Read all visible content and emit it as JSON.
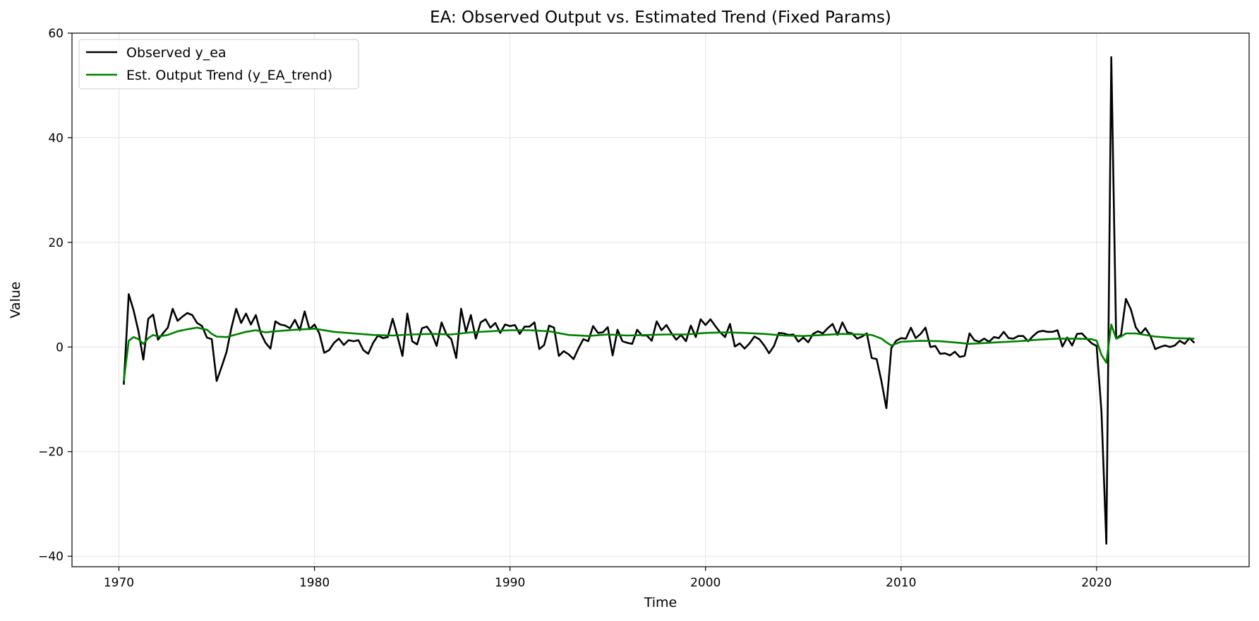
{
  "chart_data": {
    "type": "line",
    "title": "EA: Observed Output vs. Estimated Trend (Fixed Params)",
    "xlabel": "Time",
    "ylabel": "Value",
    "xlim": [
      1967.6,
      2027.8
    ],
    "ylim": [
      -42,
      60
    ],
    "xticks": [
      1970,
      1980,
      1990,
      2000,
      2010,
      2020
    ],
    "yticks": [
      -40,
      -20,
      0,
      20,
      40,
      60
    ],
    "ytick_labels": [
      "−40",
      "−20",
      "0",
      "20",
      "40",
      "60"
    ],
    "grid": true,
    "legend_position": "upper-left",
    "series": [
      {
        "name": "Observed y_ea",
        "color": "#000000",
        "x": [
          1970.25,
          1970.5,
          1970.75,
          1971,
          1971.25,
          1971.5,
          1971.75,
          1972,
          1972.25,
          1972.5,
          1972.75,
          1973,
          1973.25,
          1973.5,
          1973.75,
          1974,
          1974.25,
          1974.5,
          1974.75,
          1975,
          1975.25,
          1975.5,
          1975.75,
          1976,
          1976.25,
          1976.5,
          1976.75,
          1977,
          1977.25,
          1977.5,
          1977.75,
          1978,
          1978.25,
          1978.5,
          1978.75,
          1979,
          1979.25,
          1979.5,
          1979.75,
          1980,
          1980.25,
          1980.5,
          1980.75,
          1981,
          1981.25,
          1981.5,
          1981.75,
          1982,
          1982.25,
          1982.5,
          1982.75,
          1983,
          1983.25,
          1983.5,
          1983.75,
          1984,
          1984.25,
          1984.5,
          1984.75,
          1985,
          1985.25,
          1985.5,
          1985.75,
          1986,
          1986.25,
          1986.5,
          1986.75,
          1987,
          1987.25,
          1987.5,
          1987.75,
          1988,
          1988.25,
          1988.5,
          1988.75,
          1989,
          1989.25,
          1989.5,
          1989.75,
          1990,
          1990.25,
          1990.5,
          1990.75,
          1991,
          1991.25,
          1991.5,
          1991.75,
          1992,
          1992.25,
          1992.5,
          1992.75,
          1993,
          1993.25,
          1993.5,
          1993.75,
          1994,
          1994.25,
          1994.5,
          1994.75,
          1995,
          1995.25,
          1995.5,
          1995.75,
          1996,
          1996.25,
          1996.5,
          1996.75,
          1997,
          1997.25,
          1997.5,
          1997.75,
          1998,
          1998.25,
          1998.5,
          1998.75,
          1999,
          1999.25,
          1999.5,
          1999.75,
          2000,
          2000.25,
          2000.5,
          2000.75,
          2001,
          2001.25,
          2001.5,
          2001.75,
          2002,
          2002.25,
          2002.5,
          2002.75,
          2003,
          2003.25,
          2003.5,
          2003.75,
          2004,
          2004.25,
          2004.5,
          2004.75,
          2005,
          2005.25,
          2005.5,
          2005.75,
          2006,
          2006.25,
          2006.5,
          2006.75,
          2007,
          2007.25,
          2007.5,
          2007.75,
          2008,
          2008.25,
          2008.5,
          2008.75,
          2009,
          2009.25,
          2009.5,
          2009.75,
          2010,
          2010.25,
          2010.5,
          2010.75,
          2011,
          2011.25,
          2011.5,
          2011.75,
          2012,
          2012.25,
          2012.5,
          2012.75,
          2013,
          2013.25,
          2013.5,
          2013.75,
          2014,
          2014.25,
          2014.5,
          2014.75,
          2015,
          2015.25,
          2015.5,
          2015.75,
          2016,
          2016.25,
          2016.5,
          2016.75,
          2017,
          2017.25,
          2017.5,
          2017.75,
          2018,
          2018.25,
          2018.5,
          2018.75,
          2019,
          2019.25,
          2019.5,
          2019.75,
          2020,
          2020.25,
          2020.5,
          2020.75,
          2021,
          2021.25,
          2021.5,
          2021.75,
          2022,
          2022.25,
          2022.5,
          2022.75,
          2023,
          2023.25,
          2023.5,
          2023.75,
          2024,
          2024.25,
          2024.5,
          2024.75,
          2025
        ],
        "y": [
          -7.2,
          10.1,
          7.0,
          3.0,
          -2.4,
          5.4,
          6.2,
          1.4,
          2.6,
          3.7,
          7.3,
          5.0,
          5.8,
          6.5,
          6.1,
          4.6,
          4.0,
          1.8,
          1.5,
          -6.5,
          -3.8,
          -1.0,
          3.6,
          7.3,
          4.6,
          6.4,
          4.3,
          6.1,
          2.7,
          0.8,
          -0.3,
          4.9,
          4.3,
          4.1,
          3.6,
          5.2,
          3.2,
          6.8,
          3.4,
          4.3,
          2.6,
          -1.1,
          -0.6,
          0.8,
          1.6,
          0.4,
          1.3,
          1.1,
          1.3,
          -0.6,
          -1.3,
          0.8,
          2.2,
          1.7,
          1.9,
          5.4,
          2.0,
          -1.7,
          6.4,
          1.1,
          0.5,
          3.6,
          3.9,
          2.6,
          0.2,
          4.7,
          2.4,
          1.5,
          -2.1,
          7.3,
          2.9,
          6.1,
          1.6,
          4.7,
          5.3,
          3.7,
          4.6,
          2.7,
          4.3,
          4.0,
          4.2,
          2.5,
          3.9,
          3.9,
          4.7,
          -0.4,
          0.4,
          4.1,
          3.7,
          -1.7,
          -0.8,
          -1.4,
          -2.3,
          -0.3,
          1.5,
          1.1,
          4.0,
          2.7,
          2.8,
          3.8,
          -1.6,
          3.3,
          1.1,
          0.8,
          0.6,
          3.3,
          2.2,
          2.2,
          1.2,
          4.9,
          3.2,
          4.2,
          2.7,
          1.4,
          2.3,
          1.1,
          4.1,
          1.9,
          5.3,
          4.2,
          5.3,
          4.0,
          2.8,
          1.9,
          4.4,
          0.1,
          0.7,
          -0.3,
          0.7,
          2.0,
          1.5,
          0.3,
          -1.2,
          0.2,
          2.7,
          2.6,
          2.3,
          2.4,
          1.0,
          1.8,
          0.9,
          2.5,
          3.0,
          2.6,
          3.6,
          4.4,
          2.3,
          4.7,
          2.8,
          2.6,
          1.6,
          2.0,
          2.6,
          -2.1,
          -2.3,
          -6.6,
          -11.7,
          -0.2,
          1.2,
          1.7,
          1.6,
          3.7,
          1.7,
          2.5,
          3.7,
          0.0,
          0.2,
          -1.3,
          -1.2,
          -1.6,
          -0.9,
          -1.9,
          -1.7,
          2.6,
          1.3,
          1.0,
          1.6,
          1.0,
          1.9,
          1.7,
          2.9,
          1.7,
          1.6,
          2.1,
          2.1,
          1.1,
          2.1,
          2.9,
          3.1,
          2.9,
          2.9,
          3.2,
          0.1,
          1.8,
          0.3,
          2.5,
          2.6,
          1.6,
          0.7,
          0.2,
          -12.4,
          -37.6,
          55.4,
          1.6,
          2.3,
          9.2,
          7.2,
          3.8,
          2.5,
          3.6,
          2.1,
          -0.4,
          0.0,
          0.3,
          0.0,
          0.3,
          1.2,
          0.6,
          1.7,
          0.8
        ],
        "lw": 2.6
      },
      {
        "name": "Est. Output Trend (y_EA_trend)",
        "color": "#008000",
        "x": [
          1970.25,
          1970.5,
          1970.75,
          1971,
          1971.25,
          1971.5,
          1971.75,
          1972,
          1972.5,
          1973,
          1973.5,
          1974,
          1974.5,
          1974.75,
          1975,
          1975.5,
          1976,
          1976.5,
          1977,
          1977.5,
          1978,
          1979,
          1980,
          1981,
          1982,
          1983,
          1984,
          1985,
          1986,
          1987,
          1988,
          1989,
          1990,
          1991,
          1992,
          1993,
          1994,
          1995,
          1996,
          1997,
          1998,
          1999,
          2000,
          2001,
          2002,
          2003,
          2004,
          2005,
          2006,
          2007,
          2008,
          2008.5,
          2009,
          2009.25,
          2009.5,
          2010,
          2011,
          2012,
          2013,
          2013.5,
          2014,
          2015,
          2016,
          2017,
          2018,
          2019,
          2019.75,
          2020,
          2020.25,
          2020.5,
          2020.75,
          2021,
          2021.25,
          2021.5,
          2022,
          2023,
          2024,
          2025
        ],
        "y": [
          -6.5,
          1.2,
          1.9,
          1.5,
          0.6,
          1.7,
          2.3,
          2.0,
          2.3,
          3.0,
          3.4,
          3.7,
          3.3,
          2.5,
          2.0,
          1.9,
          2.4,
          2.9,
          3.2,
          2.8,
          3.0,
          3.3,
          3.5,
          2.9,
          2.6,
          2.3,
          2.2,
          2.4,
          2.5,
          2.4,
          2.8,
          3.0,
          3.2,
          3.2,
          3.0,
          2.3,
          2.1,
          2.4,
          2.2,
          2.3,
          2.4,
          2.4,
          2.7,
          2.8,
          2.7,
          2.5,
          2.2,
          2.1,
          2.3,
          2.5,
          2.4,
          2.3,
          1.6,
          0.9,
          0.3,
          1.0,
          1.2,
          1.1,
          0.8,
          0.6,
          0.7,
          0.9,
          1.1,
          1.4,
          1.6,
          1.6,
          1.5,
          1.2,
          -1.5,
          -3.0,
          4.3,
          1.6,
          2.0,
          2.6,
          2.6,
          2.0,
          1.7,
          1.6
        ],
        "lw": 2.6
      }
    ]
  }
}
